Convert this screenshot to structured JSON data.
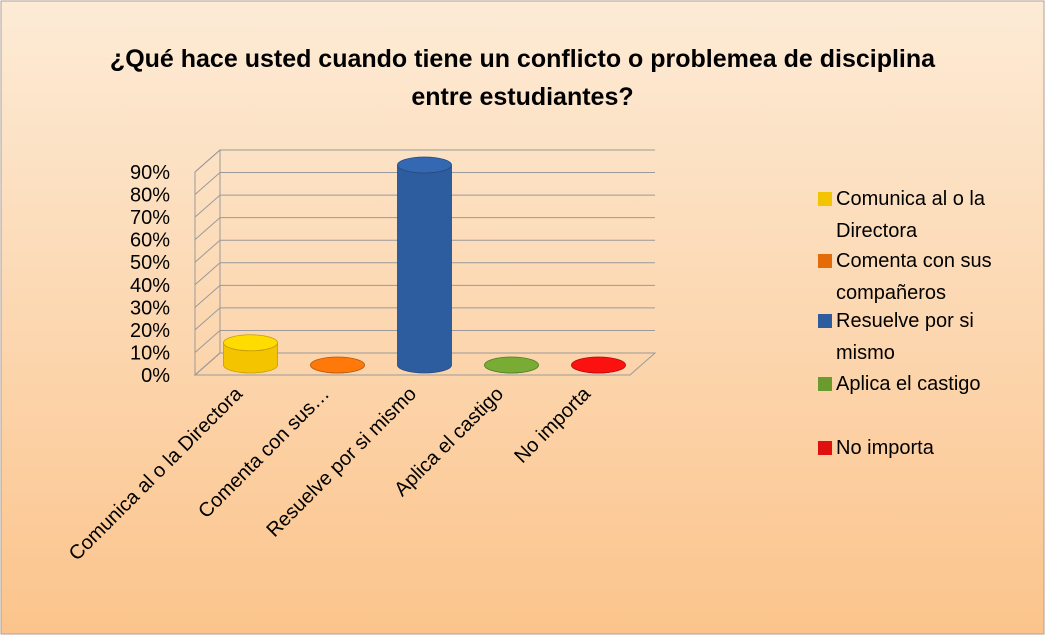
{
  "chart_data": {
    "type": "bar3d",
    "title": "¿Qué hace usted cuando tiene un conflicto o problemea de disciplina entre estudiantes?",
    "categories": [
      "Comunica al o la Directora",
      "Comenta con sus…",
      "Resuelve por si mismo",
      "Aplica el castigo",
      "No importa"
    ],
    "legend_labels": [
      "Comunica al o la Directora",
      "Comenta con sus compañeros",
      "Resuelve por si mismo",
      "Aplica el castigo",
      "No importa"
    ],
    "values": [
      10,
      0,
      90,
      0,
      0
    ],
    "colors": [
      "#f5c400",
      "#e36c09",
      "#2e5d9f",
      "#6b9a2f",
      "#e0100e"
    ],
    "ylim": [
      0,
      90
    ],
    "yticks": [
      {
        "value": 0,
        "label": "0%"
      },
      {
        "value": 10,
        "label": "10%"
      },
      {
        "value": 20,
        "label": "20%"
      },
      {
        "value": 30,
        "label": "30%"
      },
      {
        "value": 40,
        "label": "40%"
      },
      {
        "value": 50,
        "label": "50%"
      },
      {
        "value": 60,
        "label": "60%"
      },
      {
        "value": 70,
        "label": "70%"
      },
      {
        "value": 80,
        "label": "80%"
      },
      {
        "value": 90,
        "label": "90%"
      }
    ],
    "grid": true,
    "legend": "right"
  }
}
